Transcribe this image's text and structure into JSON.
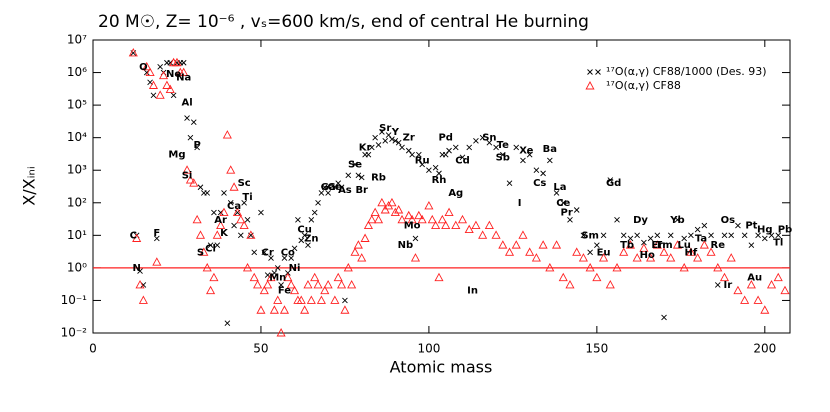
{
  "chart_data": {
    "type": "scatter",
    "title": "20 M☉, Z= 10⁻⁶ , vₛ=600 km/s, end of central He burning",
    "x_label": "Atomic mass",
    "y_label": "X/Xᵢₙᵢ",
    "log_y": true,
    "xlim": [
      0,
      207.5
    ],
    "ylim": [
      0.01,
      10000000
    ],
    "xticks": [
      0,
      50,
      100,
      150,
      200
    ],
    "yticks": [
      {
        "value": 0.01,
        "label": "10⁻²"
      },
      {
        "value": 0.1,
        "label": "10⁻¹"
      },
      {
        "value": 1,
        "label": "10⁰"
      },
      {
        "value": 10,
        "label": "10¹"
      },
      {
        "value": 100,
        "label": "10²"
      },
      {
        "value": 1000,
        "label": "10³"
      },
      {
        "value": 10000,
        "label": "10⁴"
      },
      {
        "value": 100000,
        "label": "10⁵"
      },
      {
        "value": 1000000,
        "label": "10⁶"
      },
      {
        "value": 10000000,
        "label": "10⁷"
      }
    ],
    "legend": "upper right",
    "reference_line": {
      "y": 1,
      "color": "#ff2020"
    },
    "series": [
      {
        "name": "¹⁷O(α,γ) CF88/1000 (Des. 93)",
        "color": "#000000",
        "marker": "x",
        "x": [
          12,
          13,
          14,
          15,
          16,
          17,
          18,
          19,
          20,
          21,
          22,
          23,
          24,
          25,
          26,
          27,
          28,
          29,
          30,
          31,
          32,
          33,
          34,
          35,
          36,
          37,
          38,
          39,
          40,
          41,
          42,
          43,
          44,
          45,
          46,
          47,
          48,
          50,
          51,
          52,
          53,
          54,
          55,
          56,
          57,
          58,
          59,
          60,
          61,
          62,
          63,
          64,
          65,
          66,
          67,
          68,
          69,
          70,
          72,
          73,
          74,
          75,
          76,
          78,
          79,
          80,
          81,
          82,
          83,
          84,
          85,
          86,
          87,
          88,
          89,
          90,
          91,
          92,
          94,
          95,
          96,
          97,
          98,
          100,
          102,
          103,
          104,
          105,
          106,
          108,
          110,
          112,
          114,
          116,
          118,
          120,
          122,
          124,
          126,
          128,
          130,
          132,
          134,
          136,
          138,
          140,
          142,
          144,
          146,
          148,
          150,
          152,
          154,
          156,
          158,
          160,
          162,
          164,
          166,
          168,
          170,
          172,
          174,
          176,
          178,
          180,
          182,
          184,
          186,
          188,
          190,
          192,
          194,
          196,
          198,
          200,
          202,
          204
        ],
        "values": [
          4000000,
          10,
          0.8,
          0.3,
          1000000,
          500000,
          200000,
          8,
          1500000,
          1000000,
          2000000,
          2000000,
          200000,
          2000000,
          2000000,
          2000000,
          40000,
          10000,
          30000,
          5000,
          300,
          200,
          200,
          5,
          50,
          5,
          50,
          200,
          0.02,
          100,
          20,
          50,
          10,
          100,
          30,
          10,
          3,
          50,
          3,
          0.6,
          2,
          0.7,
          1,
          0.3,
          2,
          0.7,
          2,
          4,
          30,
          7,
          10,
          5,
          30,
          50,
          100,
          200,
          300,
          200,
          300,
          400,
          300,
          0.1,
          700,
          1500,
          700,
          600,
          3000,
          3000,
          5000,
          10000,
          6000,
          15000,
          8000,
          12000,
          9000,
          8000,
          7000,
          5000,
          4000,
          3000,
          8,
          3000,
          1500,
          1000,
          1200,
          800,
          3000,
          3000,
          4000,
          5000,
          2500,
          5000,
          8000,
          10000,
          7000,
          5000,
          3000,
          400,
          5000,
          2000,
          3000,
          1000,
          800,
          2000,
          200,
          100,
          30,
          60,
          10,
          3,
          5,
          10,
          500,
          30,
          10,
          8,
          10,
          6,
          8,
          10,
          0.03,
          10,
          30,
          8,
          10,
          15,
          20,
          10,
          0.3,
          10,
          10,
          20,
          10,
          5,
          10,
          8,
          10,
          10
        ]
      },
      {
        "name": "¹⁷O(α,γ) CF88",
        "color": "#ff2020",
        "marker": "triangle",
        "x": [
          12,
          13,
          14,
          15,
          16,
          17,
          18,
          19,
          20,
          21,
          22,
          23,
          24,
          25,
          26,
          27,
          28,
          29,
          30,
          31,
          32,
          33,
          34,
          35,
          36,
          37,
          38,
          39,
          40,
          41,
          42,
          43,
          44,
          45,
          46,
          47,
          48,
          49,
          50,
          51,
          52,
          53,
          54,
          55,
          56,
          57,
          58,
          59,
          60,
          61,
          62,
          63,
          64,
          65,
          66,
          67,
          68,
          69,
          70,
          72,
          73,
          74,
          75,
          76,
          77,
          78,
          79,
          80,
          81,
          82,
          83,
          84,
          85,
          86,
          87,
          88,
          89,
          90,
          91,
          92,
          94,
          95,
          96,
          97,
          98,
          100,
          101,
          102,
          103,
          104,
          105,
          106,
          108,
          110,
          112,
          114,
          116,
          118,
          120,
          122,
          124,
          126,
          128,
          130,
          132,
          134,
          136,
          138,
          140,
          142,
          144,
          146,
          148,
          150,
          152,
          154,
          156,
          158,
          160,
          162,
          164,
          166,
          168,
          170,
          172,
          174,
          176,
          178,
          180,
          182,
          184,
          186,
          188,
          190,
          192,
          194,
          196,
          198,
          200,
          202,
          204,
          206
        ],
        "values": [
          4000000,
          8,
          0.3,
          0.1,
          1500000,
          1000000,
          400000,
          1.5,
          200000,
          800000,
          400000,
          300000,
          2000000,
          2000000,
          1000000,
          1000000,
          1000,
          500,
          400,
          30,
          10,
          3,
          1,
          0.2,
          0.5,
          10,
          20,
          50,
          12000,
          1000,
          300,
          50,
          30,
          20,
          1,
          10,
          0.5,
          0.3,
          0.05,
          0.2,
          0.3,
          0.5,
          0.05,
          0.1,
          0.01,
          0.05,
          0.5,
          0.3,
          0.2,
          0.1,
          0.1,
          0.05,
          0.3,
          0.1,
          0.5,
          0.3,
          0.1,
          0.2,
          0.3,
          0.1,
          0.5,
          0.3,
          0.05,
          1,
          0.3,
          3,
          5,
          2,
          8,
          20,
          30,
          50,
          30,
          100,
          60,
          80,
          100,
          50,
          60,
          30,
          40,
          30,
          2,
          40,
          30,
          80,
          30,
          20,
          0.5,
          30,
          20,
          50,
          20,
          30,
          15,
          20,
          10,
          20,
          10,
          5,
          3,
          5,
          10,
          3,
          2,
          5,
          1,
          5,
          0.5,
          0.3,
          3,
          2,
          1,
          0.5,
          2,
          0.3,
          1,
          3,
          5,
          2,
          4,
          2,
          5,
          3,
          2,
          5,
          1,
          3,
          2,
          5,
          3,
          1,
          0.5,
          2,
          0.2,
          0.1,
          0.3,
          0.1,
          0.05,
          0.3,
          0.5,
          0.2
        ]
      }
    ],
    "annotations": [
      {
        "text": "C",
        "x": 12,
        "y": 10
      },
      {
        "text": "N",
        "x": 13,
        "y": 1
      },
      {
        "text": "O",
        "x": 15,
        "y": 1500000
      },
      {
        "text": "F",
        "x": 19,
        "y": 12
      },
      {
        "text": "Ne",
        "x": 24,
        "y": 900000
      },
      {
        "text": "Na",
        "x": 27,
        "y": 700000
      },
      {
        "text": "Al",
        "x": 28,
        "y": 120000
      },
      {
        "text": "Mg",
        "x": 25,
        "y": 3000
      },
      {
        "text": "P",
        "x": 31,
        "y": 6000
      },
      {
        "text": "Si",
        "x": 28,
        "y": 700
      },
      {
        "text": "S",
        "x": 32,
        "y": 3
      },
      {
        "text": "Cl",
        "x": 35,
        "y": 4
      },
      {
        "text": "Ar",
        "x": 38,
        "y": 30
      },
      {
        "text": "K",
        "x": 39,
        "y": 12
      },
      {
        "text": "Ca",
        "x": 42,
        "y": 80
      },
      {
        "text": "Sc",
        "x": 45,
        "y": 400
      },
      {
        "text": "Ti",
        "x": 46,
        "y": 150
      },
      {
        "text": "Cr",
        "x": 52,
        "y": 3
      },
      {
        "text": "Co",
        "x": 58,
        "y": 3
      },
      {
        "text": "Mn",
        "x": 55,
        "y": 0.5
      },
      {
        "text": "Ni",
        "x": 60,
        "y": 1
      },
      {
        "text": "Fe",
        "x": 57,
        "y": 0.2
      },
      {
        "text": "Cu",
        "x": 63,
        "y": 15
      },
      {
        "text": "Zn",
        "x": 65,
        "y": 8
      },
      {
        "text": "Ga",
        "x": 70,
        "y": 300
      },
      {
        "text": "Ge",
        "x": 72,
        "y": 300
      },
      {
        "text": "As",
        "x": 75,
        "y": 250
      },
      {
        "text": "Se",
        "x": 78,
        "y": 1500
      },
      {
        "text": "Br",
        "x": 80,
        "y": 250
      },
      {
        "text": "Kr",
        "x": 81,
        "y": 5000
      },
      {
        "text": "Rb",
        "x": 85,
        "y": 600
      },
      {
        "text": "Sr",
        "x": 87,
        "y": 20000
      },
      {
        "text": "Y",
        "x": 90,
        "y": 15000
      },
      {
        "text": "Zr",
        "x": 94,
        "y": 10000
      },
      {
        "text": "Mo",
        "x": 95,
        "y": 20
      },
      {
        "text": "Nb",
        "x": 93,
        "y": 5
      },
      {
        "text": "Ru",
        "x": 98,
        "y": 2000
      },
      {
        "text": "Pd",
        "x": 105,
        "y": 10000
      },
      {
        "text": "Rh",
        "x": 103,
        "y": 500
      },
      {
        "text": "Cd",
        "x": 110,
        "y": 2000
      },
      {
        "text": "Ag",
        "x": 108,
        "y": 200
      },
      {
        "text": "In",
        "x": 113,
        "y": 0.2
      },
      {
        "text": "Sn",
        "x": 118,
        "y": 10000
      },
      {
        "text": "Te",
        "x": 122,
        "y": 6000
      },
      {
        "text": "Sb",
        "x": 122,
        "y": 2500
      },
      {
        "text": "I",
        "x": 127,
        "y": 100
      },
      {
        "text": "Xe",
        "x": 129,
        "y": 4000
      },
      {
        "text": "Cs",
        "x": 133,
        "y": 400
      },
      {
        "text": "Ba",
        "x": 136,
        "y": 4500
      },
      {
        "text": "La",
        "x": 139,
        "y": 300
      },
      {
        "text": "Ce",
        "x": 140,
        "y": 100
      },
      {
        "text": "Pr",
        "x": 141,
        "y": 50
      },
      {
        "text": "Gd",
        "x": 155,
        "y": 400
      },
      {
        "text": "Sm",
        "x": 148,
        "y": 10
      },
      {
        "text": "Eu",
        "x": 152,
        "y": 3
      },
      {
        "text": "Dy",
        "x": 163,
        "y": 30
      },
      {
        "text": "Tb",
        "x": 159,
        "y": 5
      },
      {
        "text": "Ho",
        "x": 165,
        "y": 2.5
      },
      {
        "text": "Er",
        "x": 168,
        "y": 5
      },
      {
        "text": "Tm",
        "x": 170,
        "y": 5
      },
      {
        "text": "Yb",
        "x": 174,
        "y": 30
      },
      {
        "text": "Lu",
        "x": 176,
        "y": 5
      },
      {
        "text": "Hf",
        "x": 178,
        "y": 3
      },
      {
        "text": "Ta",
        "x": 181,
        "y": 8
      },
      {
        "text": "Re",
        "x": 186,
        "y": 5
      },
      {
        "text": "Os",
        "x": 189,
        "y": 30
      },
      {
        "text": "Ir",
        "x": 189,
        "y": 0.3
      },
      {
        "text": "Pt",
        "x": 196,
        "y": 20
      },
      {
        "text": "Au",
        "x": 197,
        "y": 0.5
      },
      {
        "text": "Hg",
        "x": 200,
        "y": 15
      },
      {
        "text": "Tl",
        "x": 204,
        "y": 6
      },
      {
        "text": "Pb",
        "x": 206,
        "y": 15
      }
    ]
  }
}
